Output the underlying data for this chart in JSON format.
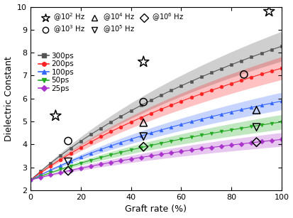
{
  "title": "",
  "xlabel": "Graft rate (%)",
  "ylabel": "Dielectric Constant",
  "xlim": [
    0,
    100
  ],
  "ylim": [
    2,
    10
  ],
  "yticks": [
    2,
    3,
    4,
    5,
    6,
    7,
    8,
    9,
    10
  ],
  "xticks": [
    0,
    20,
    40,
    60,
    80,
    100
  ],
  "curves": [
    {
      "label": "300ps",
      "color": "#555555",
      "marker": "s",
      "A": 2.45,
      "B": 6.1,
      "k": 0.016,
      "band": 0.65
    },
    {
      "label": "200ps",
      "color": "#ff2222",
      "marker": "o",
      "A": 2.45,
      "B": 5.1,
      "k": 0.016,
      "band": 0.5
    },
    {
      "label": "100ps",
      "color": "#3366ff",
      "marker": "^",
      "A": 2.45,
      "B": 3.6,
      "k": 0.016,
      "band": 0.38
    },
    {
      "label": "50ps",
      "color": "#22aa22",
      "marker": "v",
      "A": 2.45,
      "B": 2.65,
      "k": 0.016,
      "band": 0.32
    },
    {
      "label": "25ps",
      "color": "#aa33cc",
      "marker": "D",
      "A": 2.45,
      "B": 1.85,
      "k": 0.016,
      "band": 0.3
    }
  ],
  "exp_points": {
    "star": {
      "x": [
        10,
        45,
        95
      ],
      "y": [
        5.25,
        7.6,
        9.8
      ],
      "marker": "*",
      "size": 130
    },
    "circle": {
      "x": [
        15,
        45,
        85
      ],
      "y": [
        4.15,
        5.85,
        7.05
      ],
      "marker": "o",
      "size": 55
    },
    "triangle": {
      "x": [
        45,
        90
      ],
      "y": [
        4.95,
        5.5
      ],
      "marker": "^",
      "size": 55
    },
    "invtri": {
      "x": [
        15,
        45,
        90
      ],
      "y": [
        3.25,
        4.35,
        4.75
      ],
      "marker": "v",
      "size": 55
    },
    "diamond": {
      "x": [
        15,
        45,
        90
      ],
      "y": [
        2.85,
        3.9,
        4.1
      ],
      "marker": "D",
      "size": 40
    }
  },
  "freq_legend": [
    {
      "label": "@10$^{2}$ Hz",
      "marker": "*"
    },
    {
      "label": "@10$^{3}$ Hz",
      "marker": "o"
    },
    {
      "label": "@10$^{4}$ Hz",
      "marker": "^"
    },
    {
      "label": "@10$^{5}$ Hz",
      "marker": "v"
    },
    {
      "label": "@10$^{6}$ Hz",
      "marker": "D"
    }
  ],
  "ps_legend": [
    {
      "label": "300ps",
      "color": "#555555",
      "marker": "s"
    },
    {
      "label": "200ps",
      "color": "#ff2222",
      "marker": "o"
    },
    {
      "label": "100ps",
      "color": "#3366ff",
      "marker": "^"
    },
    {
      "label": "50ps",
      "color": "#22aa22",
      "marker": "v"
    },
    {
      "label": "25ps",
      "color": "#aa33cc",
      "marker": "D"
    }
  ]
}
